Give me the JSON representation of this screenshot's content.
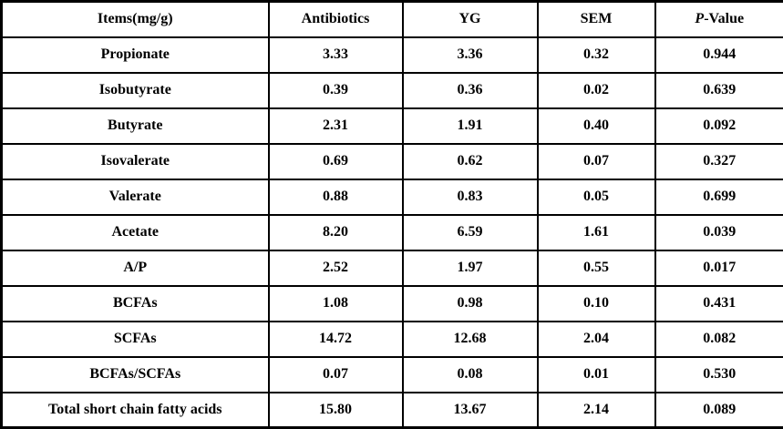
{
  "table": {
    "header": {
      "items": "Items(mg/g)",
      "antibiotics": "Antibiotics",
      "yg": "YG",
      "sem": "SEM",
      "p_italic": "P",
      "p_rest": "-Value"
    },
    "rows": [
      {
        "item": "Propionate",
        "antibiotics": "3.33",
        "yg": "3.36",
        "sem": "0.32",
        "p": "0.944"
      },
      {
        "item": "Isobutyrate",
        "antibiotics": "0.39",
        "yg": "0.36",
        "sem": "0.02",
        "p": "0.639"
      },
      {
        "item": "Butyrate",
        "antibiotics": "2.31",
        "yg": "1.91",
        "sem": "0.40",
        "p": "0.092"
      },
      {
        "item": "Isovalerate",
        "antibiotics": "0.69",
        "yg": "0.62",
        "sem": "0.07",
        "p": "0.327"
      },
      {
        "item": "Valerate",
        "antibiotics": "0.88",
        "yg": "0.83",
        "sem": "0.05",
        "p": "0.699"
      },
      {
        "item": "Acetate",
        "antibiotics": "8.20",
        "yg": "6.59",
        "sem": "1.61",
        "p": "0.039"
      },
      {
        "item": "A/P",
        "antibiotics": "2.52",
        "yg": "1.97",
        "sem": "0.55",
        "p": "0.017"
      },
      {
        "item": "BCFAs",
        "antibiotics": "1.08",
        "yg": "0.98",
        "sem": "0.10",
        "p": "0.431"
      },
      {
        "item": "SCFAs",
        "antibiotics": "14.72",
        "yg": "12.68",
        "sem": "2.04",
        "p": "0.082"
      },
      {
        "item": "BCFAs/SCFAs",
        "antibiotics": "0.07",
        "yg": "0.08",
        "sem": "0.01",
        "p": "0.530"
      },
      {
        "item": "Total short chain fatty acids",
        "antibiotics": "15.80",
        "yg": "13.67",
        "sem": "2.14",
        "p": "0.089"
      }
    ]
  }
}
